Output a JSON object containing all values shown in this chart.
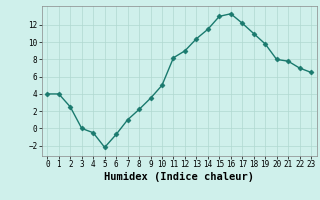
{
  "x": [
    0,
    1,
    2,
    3,
    4,
    5,
    6,
    7,
    8,
    9,
    10,
    11,
    12,
    13,
    14,
    15,
    16,
    17,
    18,
    19,
    20,
    21,
    22,
    23
  ],
  "y": [
    4,
    4,
    2.5,
    0,
    -0.5,
    -2.2,
    -0.7,
    1,
    2.2,
    3.5,
    5,
    8.2,
    9,
    10.4,
    11.5,
    13,
    13.3,
    12.2,
    11,
    9.8,
    8,
    7.8,
    7,
    6.5
  ],
  "line_color": "#1a7a6e",
  "marker": "D",
  "marker_size": 2.5,
  "background_color": "#cff0eb",
  "grid_color": "#b0d8d0",
  "xlabel": "Humidex (Indice chaleur)",
  "ylabel": "",
  "title": "",
  "xlim": [
    -0.5,
    23.5
  ],
  "ylim": [
    -3.2,
    14.2
  ],
  "yticks": [
    -2,
    0,
    2,
    4,
    6,
    8,
    10,
    12
  ],
  "xticks": [
    0,
    1,
    2,
    3,
    4,
    5,
    6,
    7,
    8,
    9,
    10,
    11,
    12,
    13,
    14,
    15,
    16,
    17,
    18,
    19,
    20,
    21,
    22,
    23
  ],
  "tick_fontsize": 5.5,
  "xlabel_fontsize": 7.5,
  "line_width": 1.0
}
